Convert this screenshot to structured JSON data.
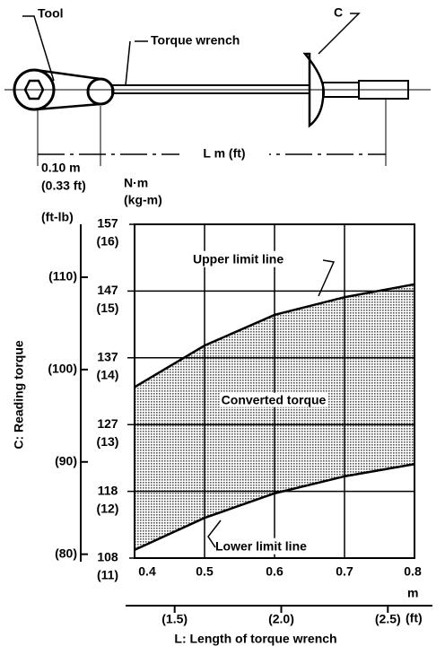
{
  "diagram": {
    "tool_label": "Tool",
    "wrench_label": "Torque wrench",
    "c_label": "C",
    "length_label": "L m (ft)",
    "offset_m": "0.10 m",
    "offset_ft": "(0.33 ft)"
  },
  "chart_data": {
    "type": "band",
    "y_label": "C: Reading torque",
    "x_label": "L: Length of torque wrench",
    "y_unit": "N·m",
    "y_unit2": "(kg-m)",
    "y2_unit": "(ft-lb)",
    "x_unit": "m",
    "x2_unit": "(ft)",
    "annotations": [
      "Upper limit line",
      "Converted torque",
      "Lower limit line"
    ],
    "x": [
      0.4,
      0.5,
      0.6,
      0.7,
      0.8
    ],
    "series": [
      {
        "name": "Upper limit line",
        "color": "#000000",
        "values": [
          133.0,
          139.1,
          143.6,
          146.2,
          148.1
        ]
      },
      {
        "name": "Lower limit line",
        "color": "#000000",
        "values": [
          109.1,
          113.8,
          117.4,
          119.9,
          121.7
        ]
      }
    ],
    "fill_color": "#9a9a9a",
    "xlim": [
      0.4,
      0.8
    ],
    "xticks": [
      0.4,
      0.5,
      0.6,
      0.7,
      0.8
    ],
    "x2lim": [
      1.312,
      2.625
    ],
    "x2ticks": [
      {
        "value": 1.5,
        "label": "(1.5)"
      },
      {
        "value": 2.0,
        "label": "(2.0)"
      },
      {
        "value": 2.5,
        "label": "(2.5)"
      }
    ],
    "ylim": [
      107.9,
      156.9
    ],
    "yticks": [
      {
        "value": 107.9,
        "label": "108"
      },
      {
        "value": 117.7,
        "label": "118"
      },
      {
        "value": 127.5,
        "label": "127"
      },
      {
        "value": 137.3,
        "label": "137"
      },
      {
        "value": 147.1,
        "label": "147"
      },
      {
        "value": 156.9,
        "label": "157"
      }
    ],
    "kg_ticks": [
      {
        "value": 107.9,
        "label": "(11)"
      },
      {
        "value": 117.7,
        "label": "(12)"
      },
      {
        "value": 127.5,
        "label": "(13)"
      },
      {
        "value": 137.3,
        "label": "(14)"
      },
      {
        "value": 147.1,
        "label": "(15)"
      },
      {
        "value": 156.9,
        "label": "(16)"
      }
    ],
    "y2lim": [
      79.58,
      115.73
    ],
    "y2ticks": [
      {
        "value": 80,
        "label": "(80)"
      },
      {
        "value": 90,
        "label": "(90)"
      },
      {
        "value": 100,
        "label": "(100)"
      },
      {
        "value": 110,
        "label": "(110)"
      }
    ],
    "grid": true
  }
}
